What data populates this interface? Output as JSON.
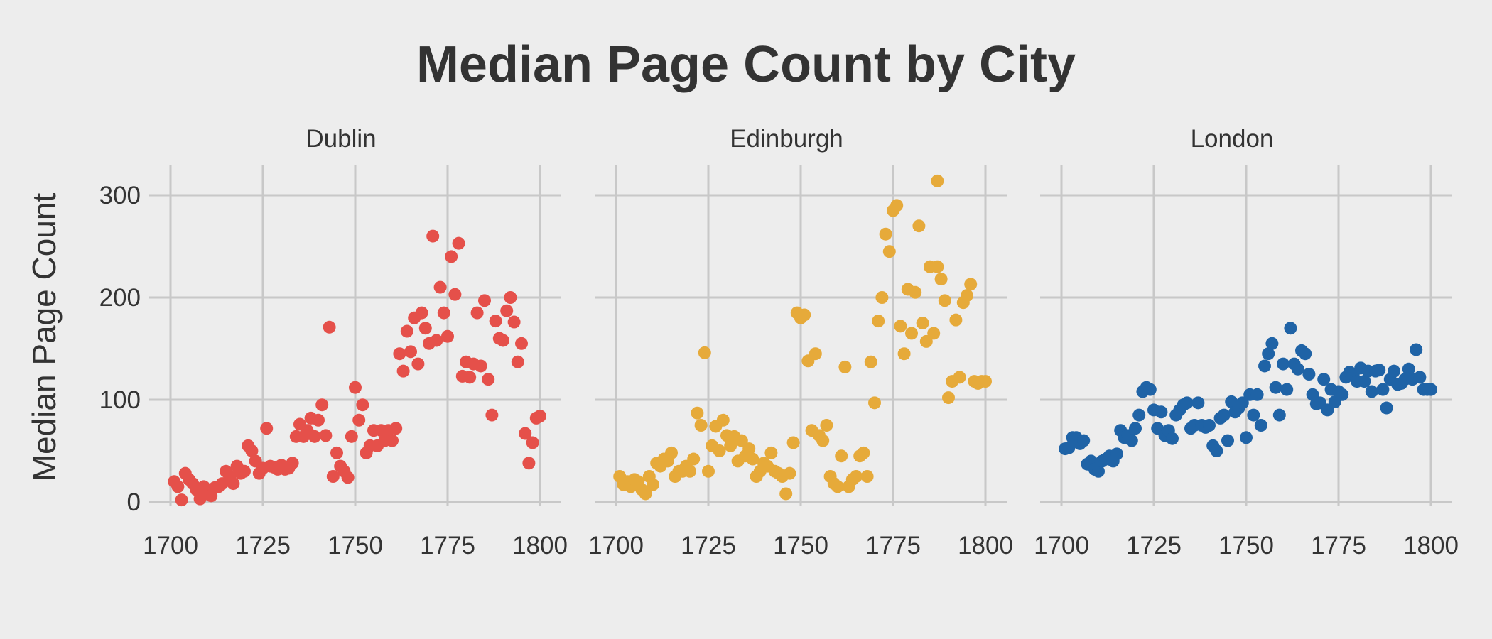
{
  "title": "Median Page Count by City",
  "chart_data": {
    "type": "scatter",
    "title": "Median Page Count by City",
    "ylabel": "Median Page Count",
    "xlabel": "",
    "xlim": [
      1700,
      1800
    ],
    "ylim": [
      0,
      300
    ],
    "xticks": [
      1700,
      1725,
      1750,
      1775,
      1800
    ],
    "yticks": [
      0,
      100,
      200,
      300
    ],
    "grid": true,
    "shared_y": true,
    "panels": [
      {
        "name": "Dublin",
        "color": "#e5504a",
        "x": [
          1701,
          1702,
          1703,
          1704,
          1705,
          1706,
          1707,
          1708,
          1709,
          1710,
          1711,
          1712,
          1713,
          1714,
          1715,
          1716,
          1717,
          1718,
          1719,
          1720,
          1721,
          1722,
          1723,
          1724,
          1725,
          1726,
          1727,
          1728,
          1729,
          1730,
          1731,
          1732,
          1733,
          1734,
          1735,
          1736,
          1737,
          1738,
          1739,
          1740,
          1741,
          1742,
          1743,
          1744,
          1745,
          1746,
          1747,
          1748,
          1749,
          1750,
          1751,
          1752,
          1753,
          1754,
          1755,
          1756,
          1757,
          1758,
          1759,
          1760,
          1761,
          1762,
          1763,
          1764,
          1765,
          1766,
          1767,
          1768,
          1769,
          1770,
          1771,
          1772,
          1773,
          1774,
          1775,
          1776,
          1777,
          1778,
          1779,
          1780,
          1781,
          1782,
          1783,
          1784,
          1785,
          1786,
          1787,
          1788,
          1789,
          1790,
          1791,
          1792,
          1793,
          1794,
          1795,
          1796,
          1797,
          1798,
          1799,
          1800
        ],
        "y": [
          20,
          15,
          2,
          28,
          22,
          18,
          12,
          3,
          15,
          10,
          6,
          14,
          15,
          18,
          30,
          25,
          18,
          35,
          28,
          30,
          55,
          50,
          40,
          28,
          33,
          72,
          35,
          34,
          32,
          36,
          32,
          33,
          38,
          64,
          76,
          64,
          70,
          82,
          64,
          80,
          95,
          65,
          171,
          25,
          48,
          35,
          30,
          24,
          64,
          112,
          80,
          95,
          48,
          55,
          70,
          55,
          70,
          60,
          70,
          60,
          72,
          145,
          128,
          167,
          147,
          180,
          135,
          185,
          170,
          155,
          260,
          158,
          210,
          185,
          162,
          240,
          203,
          253,
          123,
          137,
          122,
          135,
          185,
          133,
          197,
          120,
          85,
          177,
          160,
          158,
          187,
          200,
          176,
          137,
          155,
          67,
          38,
          58,
          82,
          84
        ]
      },
      {
        "name": "Edinburgh",
        "color": "#e6aa3a",
        "x": [
          1701,
          1702,
          1703,
          1704,
          1705,
          1706,
          1707,
          1708,
          1709,
          1710,
          1711,
          1712,
          1713,
          1714,
          1715,
          1716,
          1717,
          1718,
          1719,
          1720,
          1721,
          1722,
          1723,
          1724,
          1725,
          1726,
          1727,
          1728,
          1729,
          1730,
          1731,
          1732,
          1733,
          1734,
          1735,
          1736,
          1737,
          1738,
          1739,
          1740,
          1741,
          1742,
          1743,
          1744,
          1745,
          1746,
          1747,
          1748,
          1749,
          1750,
          1751,
          1752,
          1753,
          1754,
          1755,
          1756,
          1757,
          1758,
          1759,
          1760,
          1761,
          1762,
          1763,
          1764,
          1765,
          1766,
          1767,
          1768,
          1769,
          1770,
          1771,
          1772,
          1773,
          1774,
          1775,
          1776,
          1777,
          1778,
          1779,
          1780,
          1781,
          1782,
          1783,
          1784,
          1785,
          1786,
          1787,
          1788,
          1789,
          1790,
          1791,
          1792,
          1793,
          1794,
          1795,
          1796,
          1797,
          1798,
          1799,
          1800
        ],
        "y": [
          25,
          17,
          20,
          15,
          22,
          20,
          12,
          8,
          25,
          17,
          38,
          35,
          42,
          40,
          48,
          25,
          30,
          30,
          35,
          30,
          42,
          87,
          75,
          146,
          30,
          55,
          74,
          50,
          80,
          65,
          55,
          64,
          40,
          60,
          45,
          52,
          42,
          25,
          30,
          38,
          35,
          48,
          30,
          28,
          25,
          8,
          28,
          58,
          185,
          180,
          183,
          138,
          70,
          145,
          65,
          60,
          75,
          25,
          18,
          15,
          45,
          132,
          15,
          22,
          25,
          45,
          48,
          25,
          137,
          97,
          177,
          200,
          262,
          245,
          285,
          290,
          172,
          145,
          208,
          165,
          205,
          270,
          175,
          157,
          230,
          165,
          230,
          218,
          197,
          102,
          118,
          178,
          122,
          195,
          202,
          213,
          118,
          116,
          118,
          118
        ],
        "note": "Edinburgh also has an outlier near (1787, 314)"
      },
      {
        "name": "London",
        "color": "#1f63a6",
        "x": [
          1701,
          1702,
          1703,
          1704,
          1705,
          1706,
          1707,
          1708,
          1709,
          1710,
          1711,
          1712,
          1713,
          1714,
          1715,
          1716,
          1717,
          1718,
          1719,
          1720,
          1721,
          1722,
          1723,
          1724,
          1725,
          1726,
          1727,
          1728,
          1729,
          1730,
          1731,
          1732,
          1733,
          1734,
          1735,
          1736,
          1737,
          1738,
          1739,
          1740,
          1741,
          1742,
          1743,
          1744,
          1745,
          1746,
          1747,
          1748,
          1749,
          1750,
          1751,
          1752,
          1753,
          1754,
          1755,
          1756,
          1757,
          1758,
          1759,
          1760,
          1761,
          1762,
          1763,
          1764,
          1765,
          1766,
          1767,
          1768,
          1769,
          1770,
          1771,
          1772,
          1773,
          1774,
          1775,
          1776,
          1777,
          1778,
          1779,
          1780,
          1781,
          1782,
          1783,
          1784,
          1785,
          1786,
          1787,
          1788,
          1789,
          1790,
          1791,
          1792,
          1793,
          1794,
          1795,
          1796,
          1797,
          1798,
          1799,
          1800
        ],
        "y": [
          52,
          53,
          63,
          63,
          57,
          60,
          37,
          40,
          32,
          30,
          40,
          42,
          45,
          40,
          47,
          70,
          63,
          65,
          60,
          72,
          85,
          108,
          112,
          110,
          90,
          72,
          88,
          65,
          70,
          62,
          85,
          90,
          95,
          97,
          72,
          75,
          97,
          75,
          73,
          75,
          55,
          50,
          82,
          85,
          60,
          98,
          88,
          92,
          97,
          63,
          105,
          85,
          105,
          75,
          133,
          145,
          155,
          112,
          85,
          135,
          110,
          170,
          135,
          130,
          148,
          145,
          125,
          105,
          96,
          97,
          120,
          90,
          110,
          98,
          108,
          105,
          122,
          127,
          125,
          118,
          131,
          118,
          128,
          108,
          128,
          129,
          110,
          92,
          120,
          128,
          115,
          116,
          120,
          130,
          120,
          149,
          122,
          110,
          110,
          110
        ]
      }
    ]
  }
}
